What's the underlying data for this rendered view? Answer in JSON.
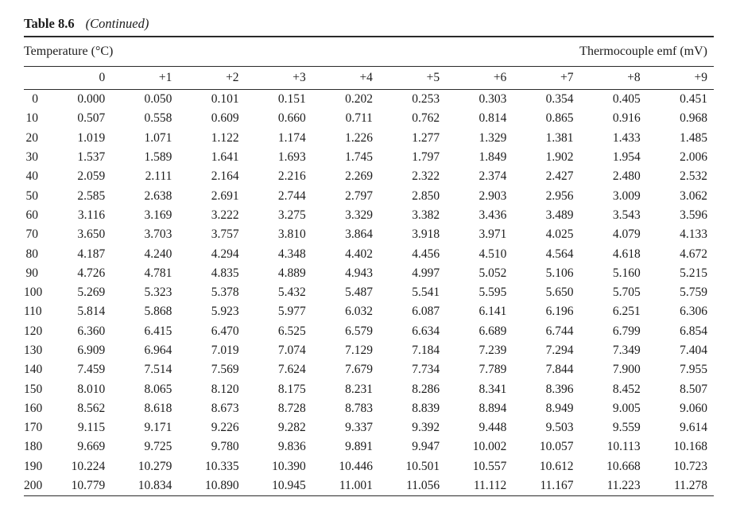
{
  "title": {
    "label": "Table 8.6",
    "continued": "(Continued)"
  },
  "header": {
    "left": "Temperature (°C)",
    "right": "Thermocouple emf (mV)"
  },
  "chart_data": {
    "type": "table",
    "title": "Table 8.6 (Continued)",
    "xlabel": "Temperature (°C)",
    "ylabel": "Thermocouple emf (mV)",
    "columns": [
      "0",
      "+1",
      "+2",
      "+3",
      "+4",
      "+5",
      "+6",
      "+7",
      "+8",
      "+9"
    ],
    "rows": [
      {
        "temperature": "0",
        "values": [
          "0.000",
          "0.050",
          "0.101",
          "0.151",
          "0.202",
          "0.253",
          "0.303",
          "0.354",
          "0.405",
          "0.451"
        ]
      },
      {
        "temperature": "10",
        "values": [
          "0.507",
          "0.558",
          "0.609",
          "0.660",
          "0.711",
          "0.762",
          "0.814",
          "0.865",
          "0.916",
          "0.968"
        ]
      },
      {
        "temperature": "20",
        "values": [
          "1.019",
          "1.071",
          "1.122",
          "1.174",
          "1.226",
          "1.277",
          "1.329",
          "1.381",
          "1.433",
          "1.485"
        ]
      },
      {
        "temperature": "30",
        "values": [
          "1.537",
          "1.589",
          "1.641",
          "1.693",
          "1.745",
          "1.797",
          "1.849",
          "1.902",
          "1.954",
          "2.006"
        ]
      },
      {
        "temperature": "40",
        "values": [
          "2.059",
          "2.111",
          "2.164",
          "2.216",
          "2.269",
          "2.322",
          "2.374",
          "2.427",
          "2.480",
          "2.532"
        ]
      },
      {
        "temperature": "50",
        "values": [
          "2.585",
          "2.638",
          "2.691",
          "2.744",
          "2.797",
          "2.850",
          "2.903",
          "2.956",
          "3.009",
          "3.062"
        ]
      },
      {
        "temperature": "60",
        "values": [
          "3.116",
          "3.169",
          "3.222",
          "3.275",
          "3.329",
          "3.382",
          "3.436",
          "3.489",
          "3.543",
          "3.596"
        ]
      },
      {
        "temperature": "70",
        "values": [
          "3.650",
          "3.703",
          "3.757",
          "3.810",
          "3.864",
          "3.918",
          "3.971",
          "4.025",
          "4.079",
          "4.133"
        ]
      },
      {
        "temperature": "80",
        "values": [
          "4.187",
          "4.240",
          "4.294",
          "4.348",
          "4.402",
          "4.456",
          "4.510",
          "4.564",
          "4.618",
          "4.672"
        ]
      },
      {
        "temperature": "90",
        "values": [
          "4.726",
          "4.781",
          "4.835",
          "4.889",
          "4.943",
          "4.997",
          "5.052",
          "5.106",
          "5.160",
          "5.215"
        ]
      },
      {
        "temperature": "100",
        "values": [
          "5.269",
          "5.323",
          "5.378",
          "5.432",
          "5.487",
          "5.541",
          "5.595",
          "5.650",
          "5.705",
          "5.759"
        ]
      },
      {
        "temperature": "110",
        "values": [
          "5.814",
          "5.868",
          "5.923",
          "5.977",
          "6.032",
          "6.087",
          "6.141",
          "6.196",
          "6.251",
          "6.306"
        ]
      },
      {
        "temperature": "120",
        "values": [
          "6.360",
          "6.415",
          "6.470",
          "6.525",
          "6.579",
          "6.634",
          "6.689",
          "6.744",
          "6.799",
          "6.854"
        ]
      },
      {
        "temperature": "130",
        "values": [
          "6.909",
          "6.964",
          "7.019",
          "7.074",
          "7.129",
          "7.184",
          "7.239",
          "7.294",
          "7.349",
          "7.404"
        ]
      },
      {
        "temperature": "140",
        "values": [
          "7.459",
          "7.514",
          "7.569",
          "7.624",
          "7.679",
          "7.734",
          "7.789",
          "7.844",
          "7.900",
          "7.955"
        ]
      },
      {
        "temperature": "150",
        "values": [
          "8.010",
          "8.065",
          "8.120",
          "8.175",
          "8.231",
          "8.286",
          "8.341",
          "8.396",
          "8.452",
          "8.507"
        ]
      },
      {
        "temperature": "160",
        "values": [
          "8.562",
          "8.618",
          "8.673",
          "8.728",
          "8.783",
          "8.839",
          "8.894",
          "8.949",
          "9.005",
          "9.060"
        ]
      },
      {
        "temperature": "170",
        "values": [
          "9.115",
          "9.171",
          "9.226",
          "9.282",
          "9.337",
          "9.392",
          "9.448",
          "9.503",
          "9.559",
          "9.614"
        ]
      },
      {
        "temperature": "180",
        "values": [
          "9.669",
          "9.725",
          "9.780",
          "9.836",
          "9.891",
          "9.947",
          "10.002",
          "10.057",
          "10.113",
          "10.168"
        ]
      },
      {
        "temperature": "190",
        "values": [
          "10.224",
          "10.279",
          "10.335",
          "10.390",
          "10.446",
          "10.501",
          "10.557",
          "10.612",
          "10.668",
          "10.723"
        ]
      },
      {
        "temperature": "200",
        "values": [
          "10.779",
          "10.834",
          "10.890",
          "10.945",
          "11.001",
          "11.056",
          "11.112",
          "11.167",
          "11.223",
          "11.278"
        ]
      }
    ]
  }
}
